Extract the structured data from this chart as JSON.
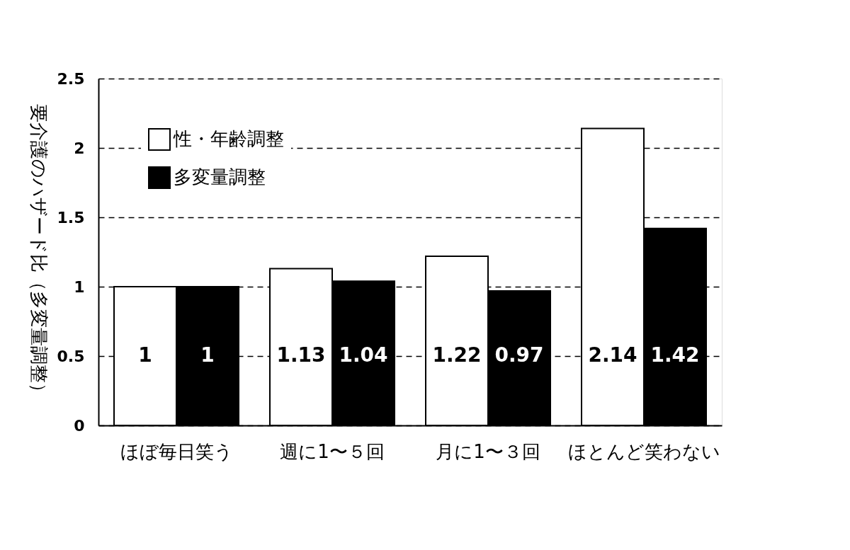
{
  "chart_data": {
    "type": "bar",
    "ylabel": "要介護のハザード比（多変量調整）",
    "categories": [
      "ほぼ毎日笑う",
      "週に1〜５回",
      "月に1〜３回",
      "ほとんど笑わない"
    ],
    "series": [
      {
        "name": "性・年齢調整",
        "color": "#ffffff",
        "values": [
          1,
          1.13,
          1.22,
          2.14
        ]
      },
      {
        "name": "多変量調整",
        "color": "#000000",
        "values": [
          1,
          1.04,
          0.97,
          1.42
        ]
      }
    ],
    "ylim": [
      0,
      2.5
    ],
    "yticks": [
      0,
      0.5,
      1,
      1.5,
      2,
      2.5
    ],
    "grid": "y",
    "legend": "top left",
    "data_labels": true
  }
}
